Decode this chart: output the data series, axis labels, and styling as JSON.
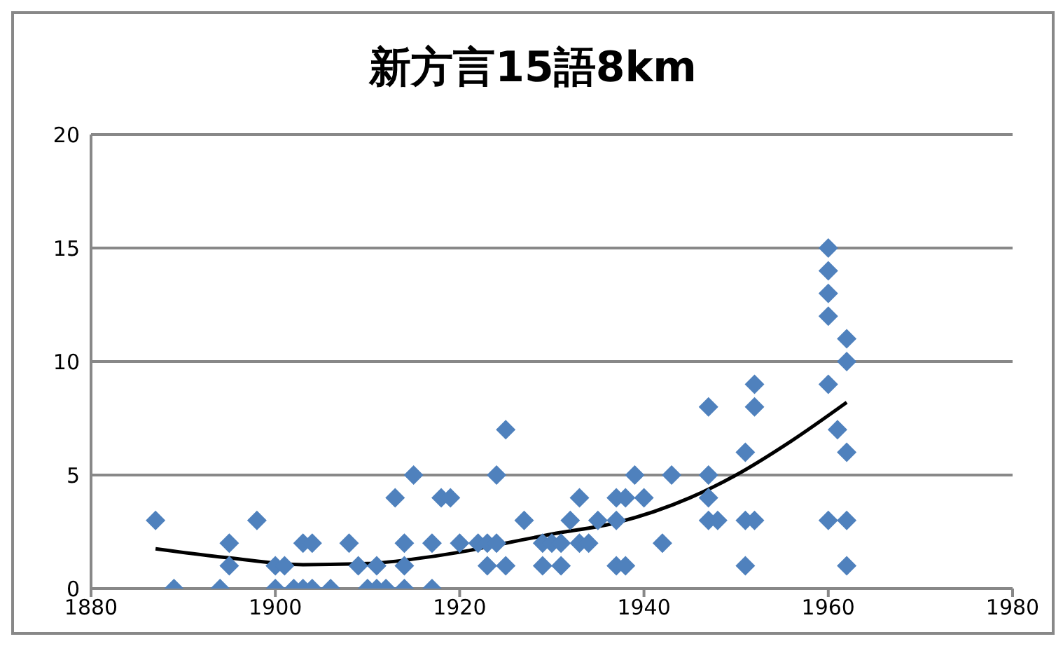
{
  "chart_data": {
    "type": "scatter",
    "title": "新方言15語8km",
    "xlim": [
      1880,
      1980
    ],
    "xticks": [
      1880,
      1900,
      1920,
      1940,
      1960,
      1980
    ],
    "ylim": [
      0,
      20
    ],
    "yticks": [
      0,
      5,
      10,
      15,
      20
    ],
    "grid": "y",
    "marker": "diamond",
    "series": [
      {
        "color": "#4f81bd",
        "x": [
          1887,
          1889,
          1894,
          1895,
          1895,
          1898,
          1900,
          1900,
          1901,
          1902,
          1903,
          1903,
          1904,
          1904,
          1906,
          1908,
          1909,
          1910,
          1911,
          1911,
          1912,
          1913,
          1914,
          1914,
          1914,
          1915,
          1917,
          1917,
          1918,
          1919,
          1920,
          1922,
          1923,
          1923,
          1924,
          1924,
          1925,
          1925,
          1927,
          1929,
          1929,
          1930,
          1931,
          1931,
          1932,
          1933,
          1933,
          1934,
          1935,
          1937,
          1937,
          1938,
          1938,
          1937,
          1939,
          1940,
          1942,
          1943,
          1947,
          1947,
          1947,
          1947,
          1948,
          1951,
          1951,
          1951,
          1952,
          1952,
          1952,
          1960,
          1960,
          1960,
          1960,
          1960,
          1960,
          1961,
          1962,
          1962,
          1962,
          1962,
          1962
        ],
        "values": [
          3,
          0,
          0,
          1,
          2,
          3,
          1,
          0,
          1,
          0,
          2,
          0,
          0,
          2,
          0,
          2,
          1,
          0,
          1,
          0,
          0,
          4,
          1,
          2,
          0,
          5,
          2,
          0,
          4,
          4,
          2,
          2,
          2,
          1,
          2,
          5,
          7,
          1,
          3,
          2,
          1,
          2,
          2,
          1,
          3,
          4,
          2,
          2,
          3,
          4,
          1,
          4,
          1,
          3,
          5,
          4,
          2,
          5,
          8,
          5,
          4,
          3,
          3,
          6,
          3,
          1,
          9,
          8,
          3,
          15,
          14,
          13,
          12,
          9,
          3,
          7,
          11,
          10,
          6,
          3,
          1
        ]
      },
      {
        "type": "line",
        "color": "#000000",
        "marker": "none",
        "x": [
          1887,
          1895,
          1903,
          1910,
          1915,
          1920,
          1925,
          1930,
          1937,
          1945,
          1950,
          1956,
          1962
        ],
        "values": [
          1.75,
          1.35,
          1.05,
          1.1,
          1.3,
          1.6,
          2,
          2.4,
          2.9,
          4,
          5,
          6.5,
          8.2
        ]
      }
    ]
  }
}
